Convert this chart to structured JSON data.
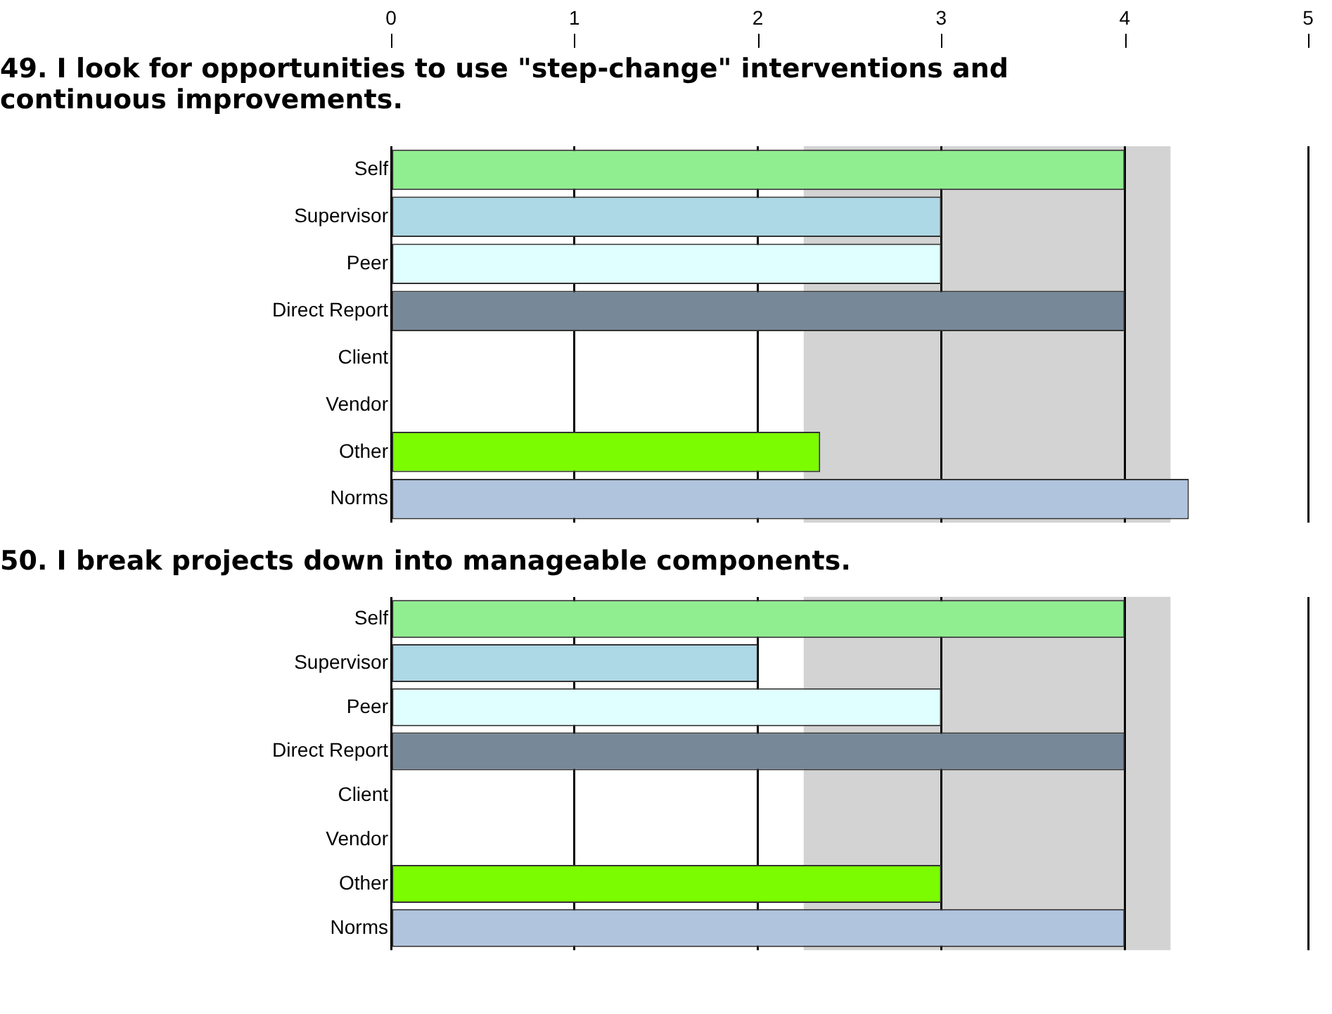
{
  "chart_data": [
    {
      "type": "bar",
      "orientation": "horizontal",
      "title": "49. I look for opportunities to use \"step-change\" interventions and continuous improvements.",
      "categories": [
        "Self",
        "Supervisor",
        "Peer",
        "Direct Report",
        "Client",
        "Vendor",
        "Other",
        "Norms"
      ],
      "values": [
        4,
        3,
        3,
        4,
        null,
        null,
        2.34,
        4.35
      ],
      "colors": [
        "#90ee90",
        "#add8e6",
        "#e0ffff",
        "#778899",
        "#ffffff",
        "#ffffff",
        "#7cfc00",
        "#b0c4de"
      ],
      "xlim": [
        0,
        5
      ],
      "xticks": [
        0,
        1,
        2,
        3,
        4,
        5
      ],
      "grid": "x",
      "legend": false,
      "bands": [
        {
          "axis": "x",
          "from": 2.25,
          "to": 4.25,
          "color": "#d3d3d3"
        }
      ]
    },
    {
      "type": "bar",
      "orientation": "horizontal",
      "title": "50. I break projects down into manageable components.",
      "categories": [
        "Self",
        "Supervisor",
        "Peer",
        "Direct Report",
        "Client",
        "Vendor",
        "Other",
        "Norms"
      ],
      "values": [
        4,
        2,
        3,
        4,
        null,
        null,
        3,
        4
      ],
      "colors": [
        "#90ee90",
        "#add8e6",
        "#e0ffff",
        "#778899",
        "#ffffff",
        "#ffffff",
        "#7cfc00",
        "#b0c4de"
      ],
      "xlim": [
        0,
        5
      ],
      "xticks": [
        0,
        1,
        2,
        3,
        4,
        5
      ],
      "grid": "x",
      "legend": false,
      "tick_labels": "y",
      "bands": [
        {
          "axis": "x",
          "from": 2.25,
          "to": 4.25,
          "color": "#d3d3d3"
        }
      ]
    }
  ]
}
